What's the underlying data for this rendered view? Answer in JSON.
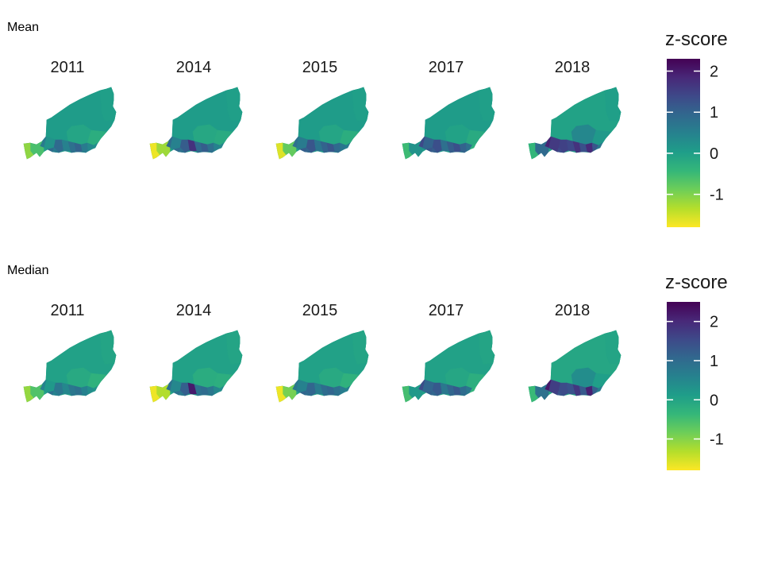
{
  "legend_title": "z-score",
  "colormap": [
    "#fde725",
    "#b5de2b",
    "#6ece58",
    "#35b779",
    "#1f9e89",
    "#26828e",
    "#31688e",
    "#3e4989",
    "#482878",
    "#440154"
  ],
  "panels": [
    {
      "title": "Mean",
      "legend": {
        "min": -1.8,
        "max": 2.3,
        "ticks": [
          2,
          1,
          0,
          -1
        ]
      },
      "facets": [
        {
          "year": "2011",
          "desert": 0.05,
          "northeast": 0.0,
          "central": -0.1,
          "east_band": -0.25,
          "south": [
            0.2,
            0.9,
            0.5,
            0.8,
            1.0,
            0.6,
            0.4,
            0.9,
            0.6,
            0.3
          ],
          "southwest": [
            0.6,
            -0.6,
            -1.1
          ]
        },
        {
          "year": "2014",
          "desert": 0.05,
          "northeast": 0.0,
          "central": -0.15,
          "east_band": -0.2,
          "south": [
            0.5,
            1.1,
            1.7,
            0.9,
            1.1,
            0.8,
            0.5,
            0.9,
            0.8,
            0.4
          ],
          "southwest": [
            0.9,
            -1.2,
            -1.7
          ]
        },
        {
          "year": "2015",
          "desert": 0.05,
          "northeast": 0.0,
          "central": -0.1,
          "east_band": -0.25,
          "south": [
            0.6,
            1.2,
            0.7,
            1.0,
            1.2,
            0.9,
            0.7,
            1.1,
            1.0,
            0.6
          ],
          "southwest": [
            0.8,
            -0.8,
            -1.6
          ]
        },
        {
          "year": "2017",
          "desert": 0.05,
          "northeast": 0.0,
          "central": -0.05,
          "east_band": -0.2,
          "south": [
            1.0,
            1.3,
            0.8,
            1.1,
            1.3,
            1.0,
            0.8,
            1.2,
            1.1,
            -0.3
          ],
          "southwest": [
            1.4,
            0.2,
            -0.5
          ]
        },
        {
          "year": "2018",
          "desert": -0.05,
          "northeast": 0.0,
          "central": 0.4,
          "east_band": 0.1,
          "south": [
            1.6,
            1.5,
            1.4,
            1.7,
            1.3,
            1.8,
            1.2,
            1.6,
            1.4,
            0.7
          ],
          "southwest": [
            1.9,
            0.9,
            -0.4
          ]
        }
      ]
    },
    {
      "title": "Median",
      "legend": {
        "min": -1.8,
        "max": 2.5,
        "ticks": [
          2,
          1,
          0,
          -1
        ]
      },
      "facets": [
        {
          "year": "2011",
          "desert": 0.05,
          "northeast": 0.0,
          "central": -0.1,
          "east_band": -0.25,
          "south": [
            0.2,
            0.8,
            0.5,
            0.8,
            0.9,
            0.6,
            0.4,
            0.9,
            0.6,
            0.3
          ],
          "southwest": [
            0.6,
            -0.6,
            -1.1
          ]
        },
        {
          "year": "2014",
          "desert": 0.05,
          "northeast": 0.0,
          "central": -0.15,
          "east_band": -0.2,
          "south": [
            0.5,
            1.2,
            2.2,
            0.9,
            1.0,
            0.8,
            0.5,
            0.9,
            0.8,
            0.4
          ],
          "southwest": [
            0.9,
            -1.3,
            -1.7
          ]
        },
        {
          "year": "2015",
          "desert": 0.05,
          "northeast": 0.0,
          "central": -0.1,
          "east_band": -0.25,
          "south": [
            0.6,
            1.1,
            0.7,
            1.0,
            1.1,
            0.9,
            0.7,
            1.1,
            1.0,
            0.6
          ],
          "southwest": [
            0.8,
            -0.9,
            -1.7
          ]
        },
        {
          "year": "2017",
          "desert": 0.05,
          "northeast": 0.0,
          "central": -0.05,
          "east_band": -0.2,
          "south": [
            1.1,
            1.3,
            0.8,
            1.1,
            1.3,
            1.0,
            0.8,
            1.2,
            1.1,
            -0.3
          ],
          "southwest": [
            1.5,
            0.2,
            -0.5
          ]
        },
        {
          "year": "2018",
          "desert": -0.05,
          "northeast": 0.0,
          "central": 0.4,
          "east_band": 0.1,
          "south": [
            1.7,
            1.5,
            1.4,
            1.8,
            1.3,
            2.1,
            1.2,
            1.7,
            1.4,
            0.7
          ],
          "southwest": [
            2.2,
            0.9,
            -0.4
          ]
        }
      ]
    }
  ]
}
